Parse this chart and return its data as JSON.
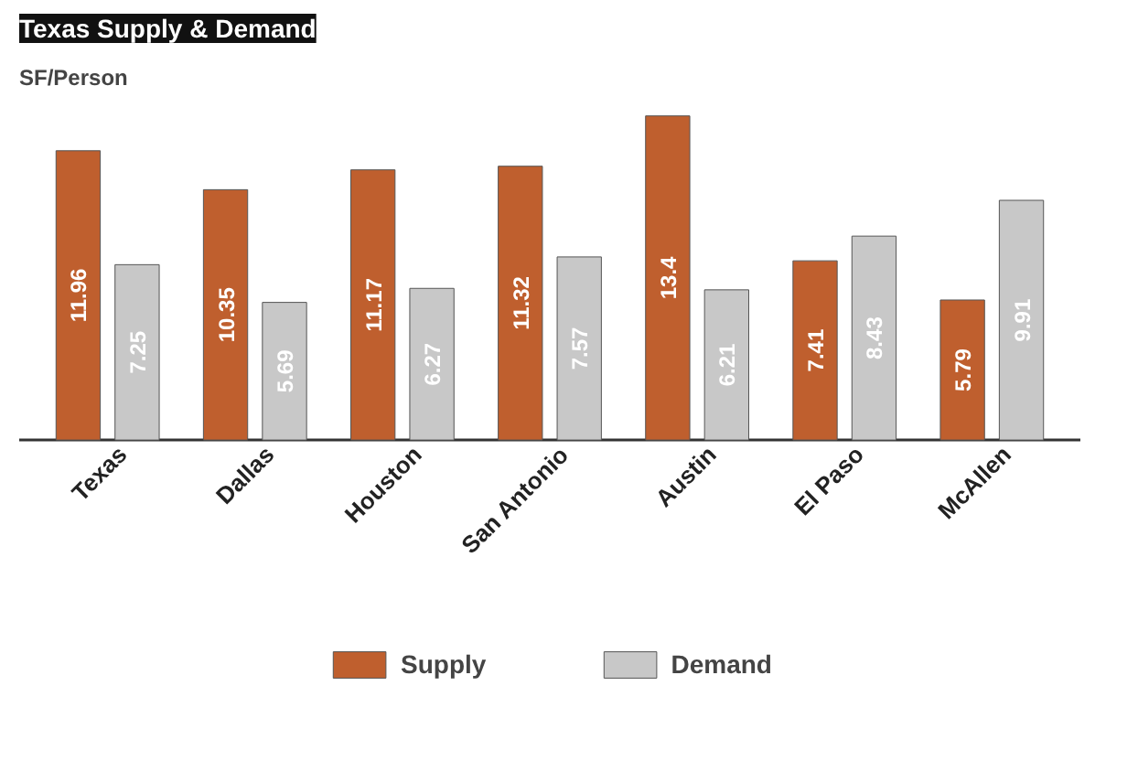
{
  "chart_data": {
    "type": "bar",
    "title": "Texas Supply & Demand",
    "ylabel": "SF/Person",
    "categories": [
      "Texas",
      "Dallas",
      "Houston",
      "San Antonio",
      "Austin",
      "El Paso",
      "McAllen"
    ],
    "series": [
      {
        "name": "Supply",
        "color": "#bf5f2e",
        "values": [
          11.96,
          10.35,
          11.17,
          11.32,
          13.4,
          7.41,
          5.79
        ]
      },
      {
        "name": "Demand",
        "color": "#c8c8c8",
        "values": [
          7.25,
          5.69,
          6.27,
          7.57,
          6.21,
          8.43,
          9.91
        ]
      }
    ],
    "tick_labels": "x",
    "data_labels": true,
    "legend": "bottom"
  }
}
